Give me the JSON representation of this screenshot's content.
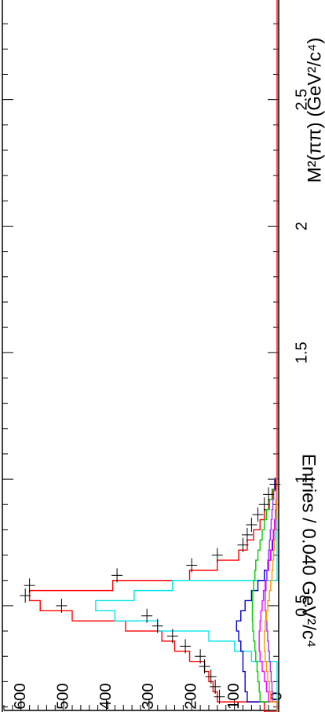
{
  "chart_data": {
    "type": "histogram",
    "orientation": "rotated-90",
    "xlabel": "M²(ππ) (GeV²/c⁴)",
    "ylabel": "Entries / 0.040 GeV²/c⁴",
    "xlim": [
      0.08,
      2.9
    ],
    "ylim": [
      0,
      640
    ],
    "x_ticks": [
      0.5,
      1,
      1.5,
      2,
      2.5
    ],
    "x_tick_labels": [
      "0.5",
      "1",
      "1.5",
      "2",
      "2.5"
    ],
    "y_ticks": [
      0,
      100,
      200,
      300,
      400,
      500,
      600
    ],
    "y_tick_labels": [
      "0",
      "100",
      "200",
      "300",
      "400",
      "500",
      "600"
    ],
    "bin_width": 0.04,
    "bin_edges": [
      0.08,
      0.12,
      0.16,
      0.2,
      0.24,
      0.28,
      0.32,
      0.36,
      0.4,
      0.44,
      0.48,
      0.52,
      0.56,
      0.6,
      0.64,
      0.68,
      0.72,
      0.76,
      0.8,
      0.84,
      0.88,
      0.92,
      0.96,
      1.0
    ],
    "data_points": {
      "x": [
        0.14,
        0.18,
        0.22,
        0.26,
        0.3,
        0.34,
        0.38,
        0.42,
        0.46,
        0.5,
        0.54,
        0.58,
        0.62,
        0.66,
        0.7,
        0.74,
        0.78,
        0.82,
        0.86,
        0.9,
        0.94,
        0.98
      ],
      "y": [
        135,
        145,
        155,
        170,
        180,
        215,
        245,
        280,
        305,
        505,
        590,
        580,
        375,
        200,
        140,
        80,
        70,
        60,
        45,
        30,
        20,
        5
      ]
    },
    "series": [
      {
        "color": "#ff0000",
        "values": [
          30,
          140,
          150,
          160,
          170,
          205,
          240,
          270,
          355,
          480,
          555,
          580,
          385,
          205,
          140,
          90,
          70,
          55,
          40,
          30,
          20,
          10,
          3
        ]
      },
      {
        "color": "#00e5ee",
        "values": [
          0,
          0,
          0,
          0,
          0,
          60,
          100,
          160,
          280,
          380,
          425,
          335,
          245,
          0,
          0,
          0,
          0,
          0,
          0,
          0,
          0,
          0,
          0
        ]
      },
      {
        "color": "#0000cc",
        "values": [
          0,
          70,
          75,
          75,
          80,
          80,
          85,
          90,
          95,
          85,
          75,
          60,
          45,
          30,
          20,
          15,
          10,
          8,
          5,
          3,
          2,
          1,
          0
        ]
      },
      {
        "color": "#00cc00",
        "values": [
          0,
          40,
          42,
          45,
          47,
          50,
          52,
          55,
          57,
          58,
          58,
          57,
          55,
          52,
          50,
          45,
          40,
          35,
          30,
          25,
          18,
          12,
          5
        ]
      },
      {
        "color": "#ff00ff",
        "values": [
          0,
          20,
          25,
          30,
          35,
          40,
          42,
          42,
          40,
          38,
          35,
          32,
          28,
          24,
          20,
          16,
          12,
          9,
          6,
          4,
          2,
          1,
          0
        ]
      },
      {
        "color": "#9933ff",
        "values": [
          0,
          10,
          12,
          14,
          16,
          18,
          20,
          22,
          24,
          26,
          28,
          28,
          26,
          24,
          22,
          20,
          18,
          16,
          14,
          12,
          10,
          8,
          6
        ]
      },
      {
        "color": "#ff9900",
        "values": [
          0,
          15,
          18,
          22,
          25,
          28,
          30,
          30,
          28,
          25,
          22,
          18,
          15,
          12,
          10,
          8,
          6,
          4,
          3,
          2,
          1,
          0,
          0
        ]
      }
    ]
  }
}
